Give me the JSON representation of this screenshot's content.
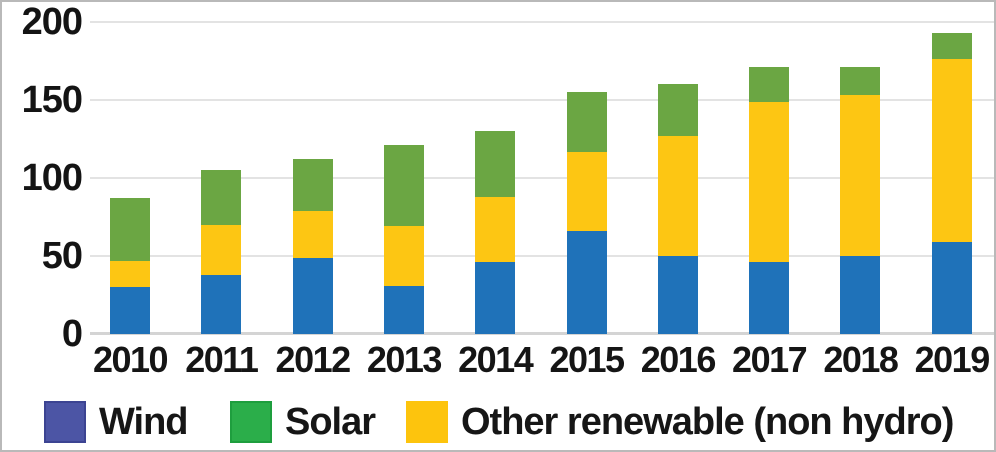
{
  "chart_data": {
    "type": "bar",
    "stacked": true,
    "title": "",
    "xlabel": "",
    "ylabel": "",
    "categories": [
      "2010",
      "2011",
      "2012",
      "2013",
      "2014",
      "2015",
      "2016",
      "2017",
      "2018",
      "2019"
    ],
    "series": [
      {
        "name": "Wind",
        "color": "#1f72b9",
        "values": [
          30,
          38,
          49,
          31,
          46,
          66,
          50,
          46,
          50,
          59
        ]
      },
      {
        "name": "Other renewable (non hydro)",
        "color": "#fdc613",
        "values": [
          17,
          32,
          30,
          38,
          42,
          51,
          77,
          103,
          103,
          117
        ]
      },
      {
        "name": "Solar",
        "color": "#6ba643",
        "values": [
          40,
          35,
          33,
          52,
          42,
          38,
          33,
          22,
          18,
          17
        ]
      }
    ],
    "stack_totals": [
      87,
      105,
      112,
      121,
      130,
      155,
      160,
      171,
      171,
      193
    ],
    "y_ticks": [
      0,
      50,
      100,
      150,
      200
    ],
    "ylim": [
      0,
      200
    ],
    "grid": true,
    "legend_position": "bottom",
    "legend_items": [
      {
        "label": "Wind",
        "swatch_color": "#4c55a5",
        "swatch_border": "#3c4492"
      },
      {
        "label": "Solar",
        "swatch_color": "#2bae4a",
        "swatch_border": "#1e9e3e"
      },
      {
        "label": "Other renewable (non hydro)",
        "swatch_color": "#fdc40d",
        "swatch_border": "#fdc40d"
      }
    ]
  },
  "colors": {
    "grid_line": "#e3e3e3",
    "base_line": "#d4d4d4",
    "axis_text": "#141414",
    "background": "#ffffff",
    "frame_border": "#b9b9b9"
  }
}
